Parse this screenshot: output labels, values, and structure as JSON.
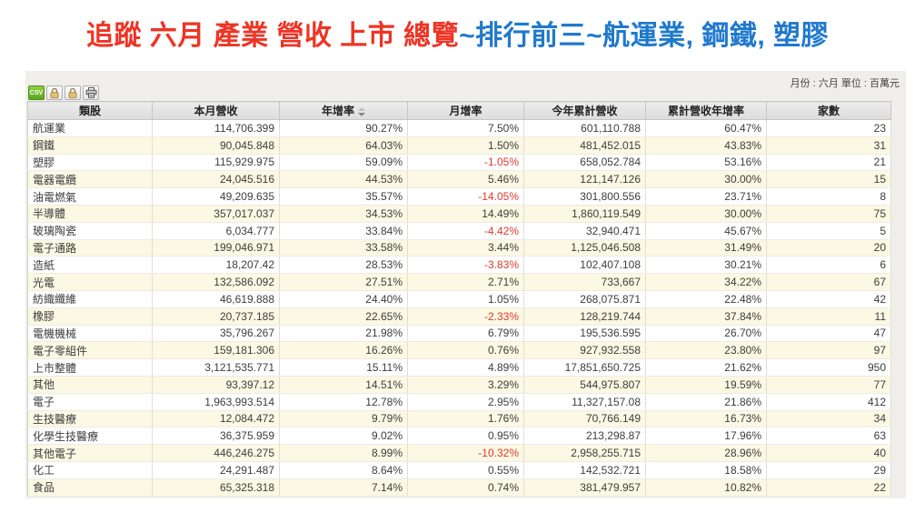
{
  "title": {
    "tracking": "追蹤 六月 產業 營收 上市 總覽",
    "highlight": "~排行前三~航運業, 鋼鐵, 塑膠"
  },
  "colors": {
    "title_red": "#ee3424",
    "title_blue": "#2079cc",
    "negative_value": "#e0382c",
    "row_alt": "#fbf8e3",
    "csv_button": "#6cb52d"
  },
  "panel": {
    "meta": "月份 : 六月 單位 : 百萬元",
    "toolbar": {
      "csv_label": "CSV",
      "icons": [
        "csv-export-icon",
        "lock-icon",
        "lock-icon",
        "printer-icon"
      ]
    }
  },
  "table": {
    "columns": [
      "類股",
      "本月營收",
      "年增率",
      "月增率",
      "今年累計營收",
      "累計營收年增率",
      "家數"
    ],
    "column_keys": [
      "sector",
      "month_revenue",
      "yoy_growth",
      "mom_growth",
      "ytd_revenue",
      "ytd_yoy_growth",
      "companies"
    ],
    "sort": {
      "column": "年增率",
      "direction": "desc"
    },
    "rows": [
      {
        "cells": [
          "航運業",
          "114,706.399",
          "90.27%",
          "7.50%",
          "601,110.788",
          "60.47%",
          "23"
        ]
      },
      {
        "cells": [
          "鋼鐵",
          "90,045.848",
          "64.03%",
          "1.50%",
          "481,452.015",
          "43.83%",
          "31"
        ]
      },
      {
        "cells": [
          "塑膠",
          "115,929.975",
          "59.09%",
          "-1.05%",
          "658,052.784",
          "53.16%",
          "21"
        ]
      },
      {
        "cells": [
          "電器電纜",
          "24,045.516",
          "44.53%",
          "5.46%",
          "121,147.126",
          "30.00%",
          "15"
        ]
      },
      {
        "cells": [
          "油電燃氣",
          "49,209.635",
          "35.57%",
          "-14.05%",
          "301,800.556",
          "23.71%",
          "8"
        ]
      },
      {
        "cells": [
          "半導體",
          "357,017.037",
          "34.53%",
          "14.49%",
          "1,860,119.549",
          "30.00%",
          "75"
        ]
      },
      {
        "cells": [
          "玻璃陶瓷",
          "6,034.777",
          "33.84%",
          "-4.42%",
          "32,940.471",
          "45.67%",
          "5"
        ]
      },
      {
        "cells": [
          "電子通路",
          "199,046.971",
          "33.58%",
          "3.44%",
          "1,125,046.508",
          "31.49%",
          "20"
        ]
      },
      {
        "cells": [
          "造紙",
          "18,207.42",
          "28.53%",
          "-3.83%",
          "102,407.108",
          "30.21%",
          "6"
        ]
      },
      {
        "cells": [
          "光電",
          "132,586.092",
          "27.51%",
          "2.71%",
          "733,667",
          "34.22%",
          "67"
        ]
      },
      {
        "cells": [
          "紡織纖維",
          "46,619.888",
          "24.40%",
          "1.05%",
          "268,075.871",
          "22.48%",
          "42"
        ]
      },
      {
        "cells": [
          "橡膠",
          "20,737.185",
          "22.65%",
          "-2.33%",
          "128,219.744",
          "37.84%",
          "11"
        ]
      },
      {
        "cells": [
          "電機機械",
          "35,796.267",
          "21.98%",
          "6.79%",
          "195,536.595",
          "26.70%",
          "47"
        ]
      },
      {
        "cells": [
          "電子零組件",
          "159,181.306",
          "16.26%",
          "0.76%",
          "927,932.558",
          "23.80%",
          "97"
        ]
      },
      {
        "cells": [
          "上市整體",
          "3,121,535.771",
          "15.11%",
          "4.89%",
          "17,851,650.725",
          "21.62%",
          "950"
        ]
      },
      {
        "cells": [
          "其他",
          "93,397.12",
          "14.51%",
          "3.29%",
          "544,975.807",
          "19.59%",
          "77"
        ]
      },
      {
        "cells": [
          "電子",
          "1,963,993.514",
          "12.78%",
          "2.95%",
          "11,327,157.08",
          "21.86%",
          "412"
        ]
      },
      {
        "cells": [
          "生技醫療",
          "12,084.472",
          "9.79%",
          "1.76%",
          "70,766.149",
          "16.73%",
          "34"
        ]
      },
      {
        "cells": [
          "化學生技醫療",
          "36,375.959",
          "9.02%",
          "0.95%",
          "213,298.87",
          "17.96%",
          "63"
        ]
      },
      {
        "cells": [
          "其他電子",
          "446,246.275",
          "8.99%",
          "-10.32%",
          "2,958,255.715",
          "28.96%",
          "40"
        ]
      },
      {
        "cells": [
          "化工",
          "24,291.487",
          "8.64%",
          "0.55%",
          "142,532.721",
          "18.58%",
          "29"
        ]
      },
      {
        "cells": [
          "食品",
          "65,325.318",
          "7.14%",
          "0.74%",
          "381,479.957",
          "10.82%",
          "22"
        ]
      }
    ]
  }
}
